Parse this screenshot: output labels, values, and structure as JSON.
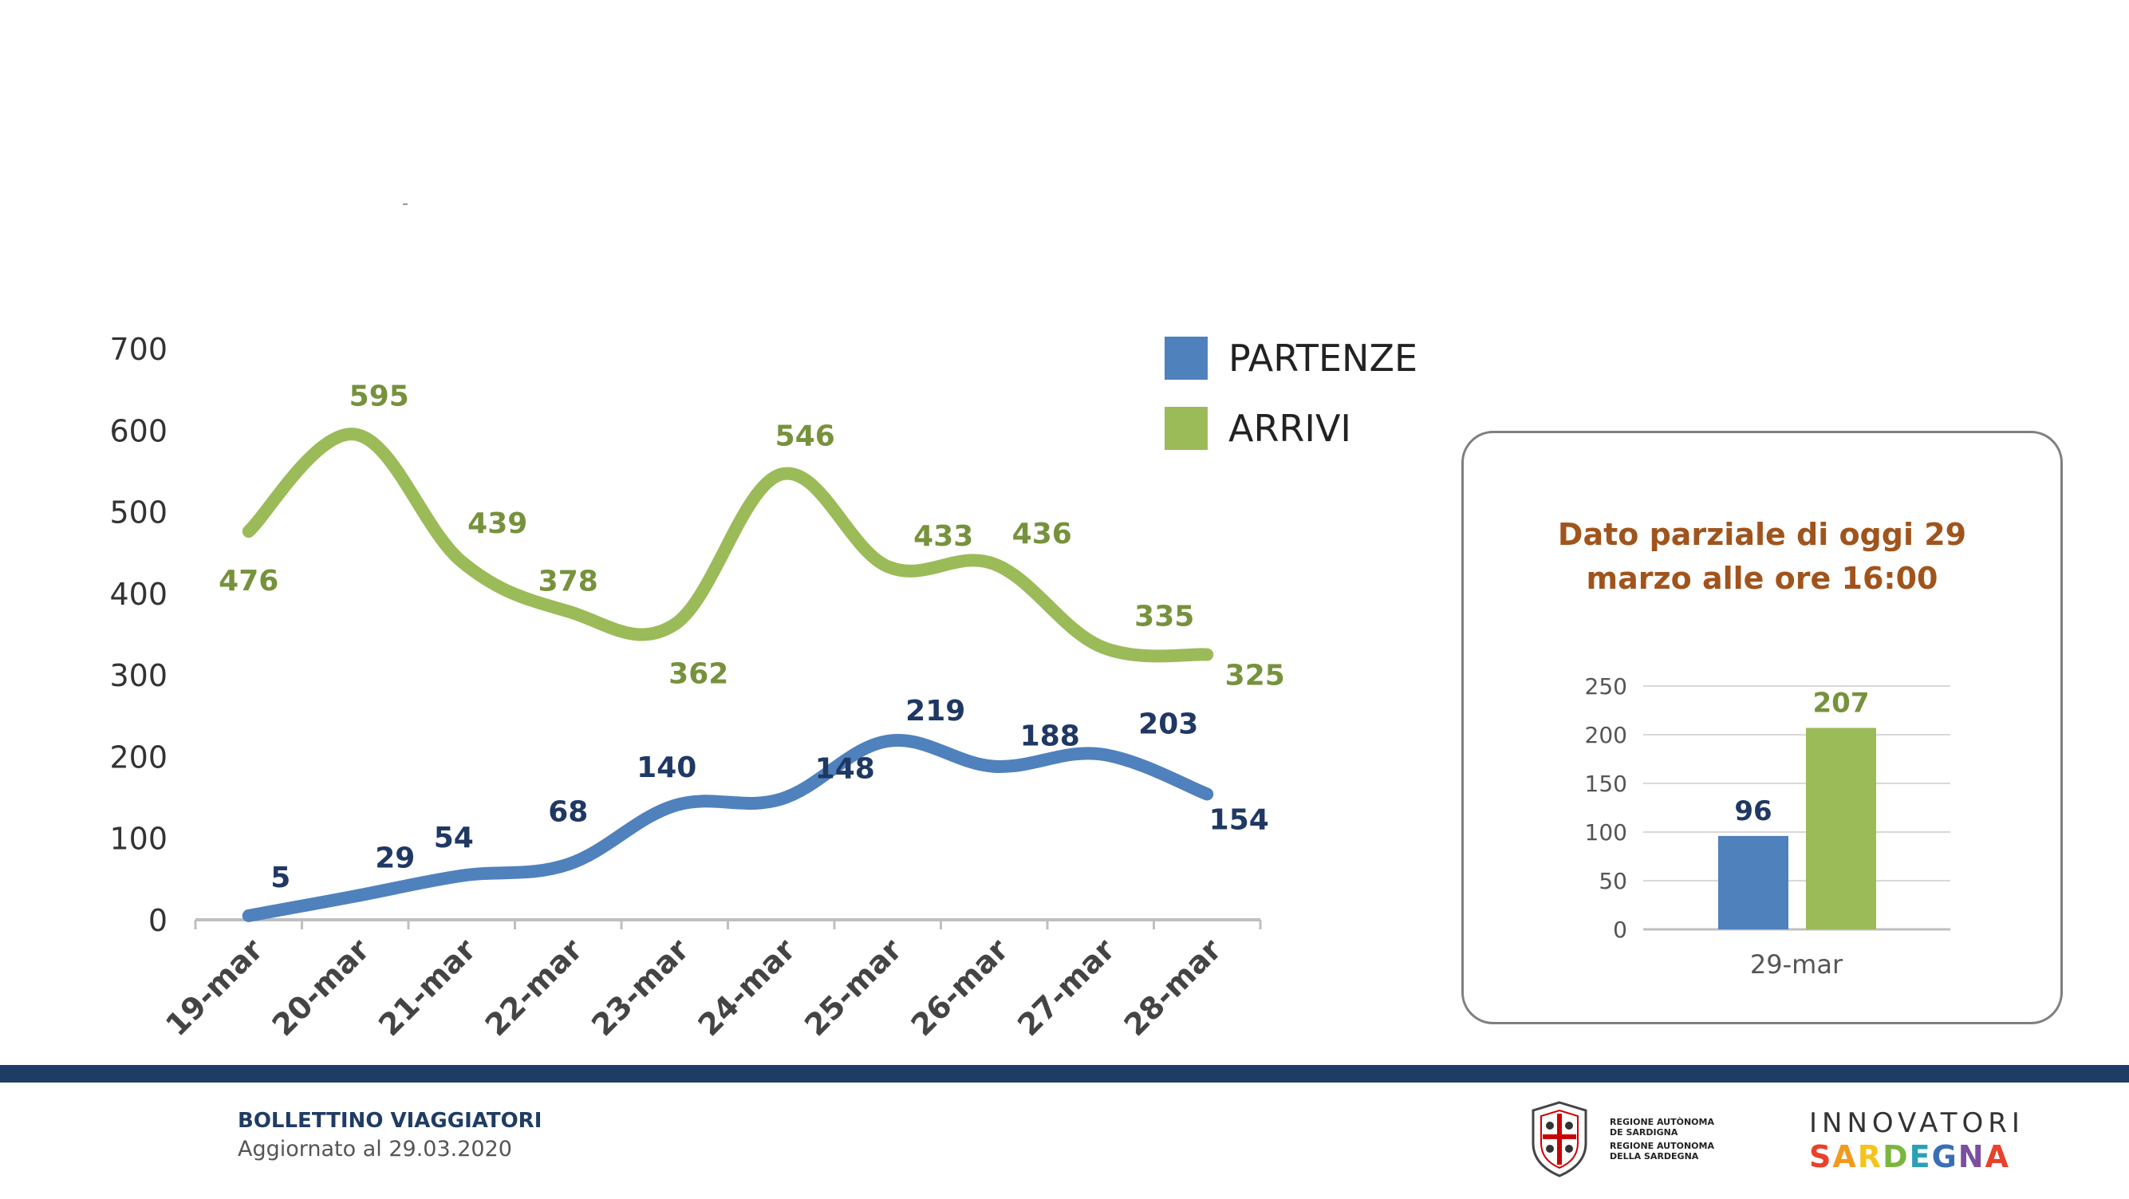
{
  "legend": {
    "partenze_label": "PARTENZE",
    "arrivi_label": "ARRIVI"
  },
  "colors": {
    "partenze": "#4f81bd",
    "arrivi": "#9bbb59",
    "partenze_label": "#1f3864",
    "arrivi_label": "#76923c",
    "title_accent": "#a0541c",
    "footer": "#1f3c64"
  },
  "chart_data": [
    {
      "type": "line",
      "title": "",
      "xlabel": "",
      "ylabel": "",
      "categories": [
        "19-mar",
        "20-mar",
        "21-mar",
        "22-mar",
        "23-mar",
        "24-mar",
        "25-mar",
        "26-mar",
        "27-mar",
        "28-mar"
      ],
      "y_ticks": [
        "0",
        "100",
        "200",
        "300",
        "400",
        "500",
        "600",
        "700"
      ],
      "ylim": [
        0,
        700
      ],
      "series": [
        {
          "name": "PARTENZE",
          "values": [
            5,
            29,
            54,
            68,
            140,
            148,
            219,
            188,
            203,
            154
          ],
          "labels": [
            "5",
            "29",
            "54",
            "68",
            "140",
            "148",
            "219",
            "188",
            "203",
            "154"
          ]
        },
        {
          "name": "ARRIVI",
          "values": [
            476,
            595,
            439,
            378,
            362,
            546,
            433,
            436,
            335,
            325
          ],
          "labels": [
            "476",
            "595",
            "439",
            "378",
            "362",
            "546",
            "433",
            "436",
            "335",
            "325"
          ]
        }
      ]
    },
    {
      "type": "bar",
      "title": "Dato parziale di oggi 29 marzo alle ore 16:00",
      "categories": [
        "29-mar"
      ],
      "y_ticks": [
        "0",
        "50",
        "100",
        "150",
        "200",
        "250"
      ],
      "ylim": [
        0,
        250
      ],
      "series": [
        {
          "name": "PARTENZE",
          "values": [
            96
          ],
          "labels": [
            "96"
          ]
        },
        {
          "name": "ARRIVI",
          "values": [
            207
          ],
          "labels": [
            "207"
          ]
        }
      ]
    }
  ],
  "panel": {
    "title_line1": "Dato parziale di oggi 29",
    "title_line2": "marzo alle ore 16:00"
  },
  "footer": {
    "title": "BOLLETTINO VIAGGIATORI",
    "subtitle": "Aggiornato al 29.03.2020",
    "region_line1": "REGIONE AUTÒNOMA",
    "region_line2": "DE SARDIGNA",
    "region_line3": "REGIONE AUTONOMA",
    "region_line4": "DELLA SARDEGNA",
    "innov_top": "INNOVATORI",
    "innov_letters": [
      "S",
      "A",
      "R",
      "D",
      "E",
      "G",
      "N",
      "A"
    ],
    "innov_colors": [
      "#e8412c",
      "#f29a1f",
      "#f6c31a",
      "#7bb640",
      "#2aa0b4",
      "#3a6fb5",
      "#7a4fa0",
      "#e8412c"
    ]
  }
}
